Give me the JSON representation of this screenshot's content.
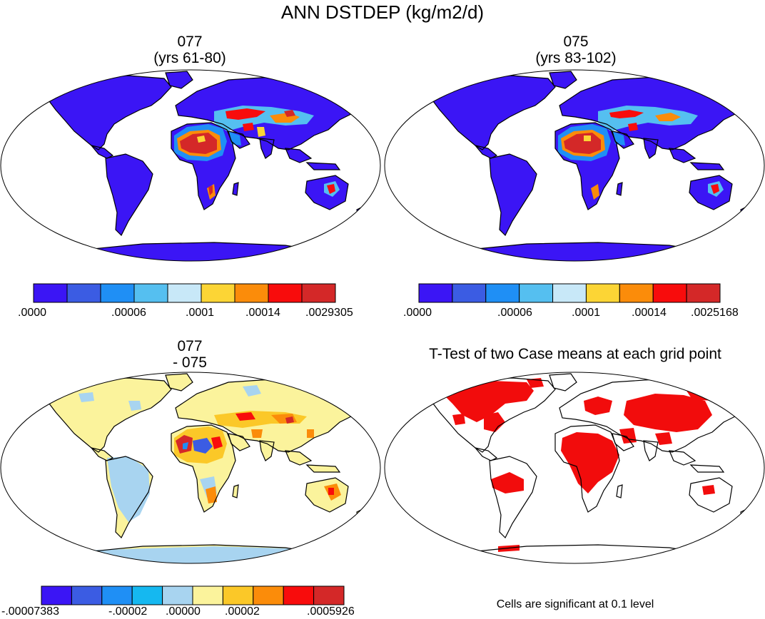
{
  "figure": {
    "title": "ANN DSTDEP (kg/m2/d)"
  },
  "panels": [
    {
      "id": "case1",
      "title_line1": "077",
      "title_line2": "(yrs 61-80)",
      "colorbar": {
        "colors": [
          "#3b15f5",
          "#3b5ce3",
          "#1f8ff5",
          "#55bff0",
          "#c8e8f8",
          "#fcd535",
          "#fb8c0a",
          "#f80c0c",
          "#d42828"
        ],
        "labels": [
          ".0000",
          ".00006",
          ".0001",
          ".00014",
          ".0029305"
        ]
      }
    },
    {
      "id": "case2",
      "title_line1": "075",
      "title_line2": "(yrs 83-102)",
      "colorbar": {
        "colors": [
          "#3b15f5",
          "#3b5ce3",
          "#1f8ff5",
          "#55bff0",
          "#c8e8f8",
          "#fcd535",
          "#fb8c0a",
          "#f80c0c",
          "#d42828"
        ],
        "labels": [
          ".0000",
          ".00006",
          ".0001",
          ".00014",
          ".0025168"
        ]
      }
    },
    {
      "id": "difference",
      "title_line1": "077",
      "title_line2": "- 075",
      "colorbar": {
        "colors": [
          "#3b15f5",
          "#3b5ce3",
          "#1f8ff5",
          "#15b8f0",
          "#a8d4f0",
          "#fbf39c",
          "#fbc828",
          "#fb8c0a",
          "#f80c0c",
          "#d42828"
        ],
        "labels": [
          "-.00007383",
          "-.00002",
          ".00000",
          ".00002",
          ".0005926"
        ]
      }
    },
    {
      "id": "ttest",
      "title_line1": "T-Test of two Case means at each grid point",
      "note": "Cells are significant at 0.1 level",
      "significant_color": "#f20c0c"
    }
  ]
}
